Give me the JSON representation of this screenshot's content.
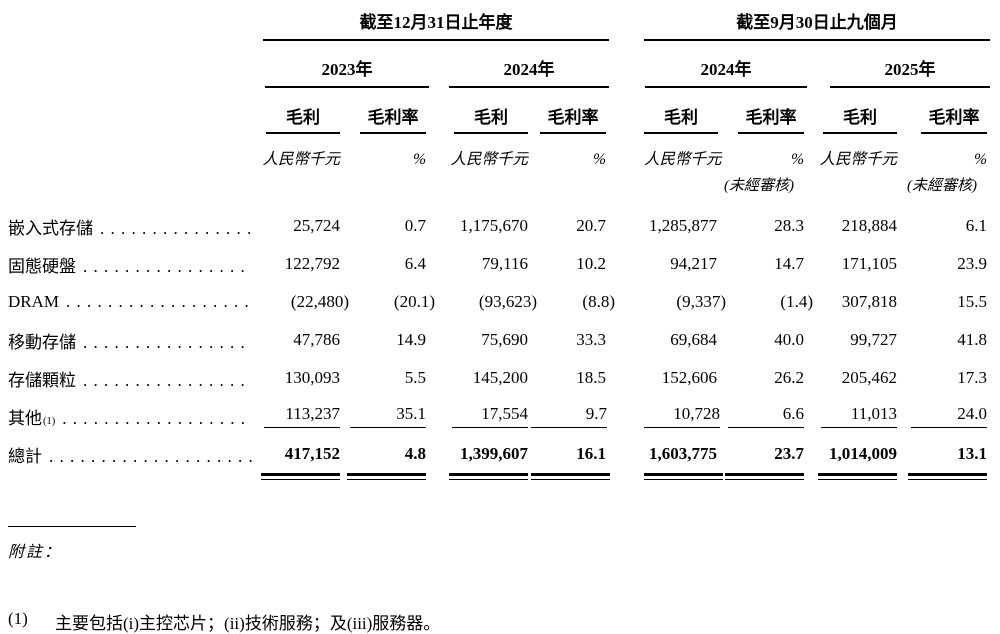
{
  "header": {
    "group1": "截至12月31日止年度",
    "group2": "截至9月30日止九個月",
    "years": [
      "2023年",
      "2024年",
      "2024年",
      "2025年"
    ],
    "col_profit": "毛利",
    "col_margin": "毛利率",
    "unit_profit": "人民幣千元",
    "unit_margin": "%",
    "unaudited": "(未經審核)"
  },
  "rows": [
    {
      "label": "嵌入式存儲",
      "values": [
        "25,724",
        "0.7",
        "1,175,670",
        "20.7",
        "1,285,877",
        "28.3",
        "218,884",
        "6.1"
      ]
    },
    {
      "label": "固態硬盤",
      "values": [
        "122,792",
        "6.4",
        "79,116",
        "10.2",
        "94,217",
        "14.7",
        "171,105",
        "23.9"
      ]
    },
    {
      "label": "DRAM",
      "values": [
        "(22,480)",
        "(20.1)",
        "(93,623)",
        "(8.8)",
        "(9,337)",
        "(1.4)",
        "307,818",
        "15.5"
      ]
    },
    {
      "label": "移動存儲",
      "values": [
        "47,786",
        "14.9",
        "75,690",
        "33.3",
        "69,684",
        "40.0",
        "99,727",
        "41.8"
      ]
    },
    {
      "label": "存儲顆粒",
      "values": [
        "130,093",
        "5.5",
        "145,200",
        "18.5",
        "152,606",
        "26.2",
        "205,462",
        "17.3"
      ]
    },
    {
      "label": "其他",
      "sup": "(1)",
      "values": [
        "113,237",
        "35.1",
        "17,554",
        "9.7",
        "10,728",
        "6.6",
        "11,013",
        "24.0"
      ]
    }
  ],
  "total": {
    "label": "總計",
    "values": [
      "417,152",
      "4.8",
      "1,399,607",
      "16.1",
      "1,603,775",
      "23.7",
      "1,014,009",
      "13.1"
    ]
  },
  "footnote": {
    "heading": "附註：",
    "marker": "(1)",
    "text": "主要包括(i)主控芯片；(ii)技術服務；及(iii)服務器。"
  }
}
